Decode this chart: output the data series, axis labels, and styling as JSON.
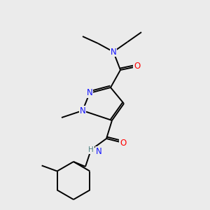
{
  "background_color": "#ebebeb",
  "atom_colors": {
    "C": "#000000",
    "N": "#1414ff",
    "O": "#ff0000",
    "H": "#4d8080"
  },
  "figsize": [
    3.0,
    3.0
  ],
  "dpi": 100
}
